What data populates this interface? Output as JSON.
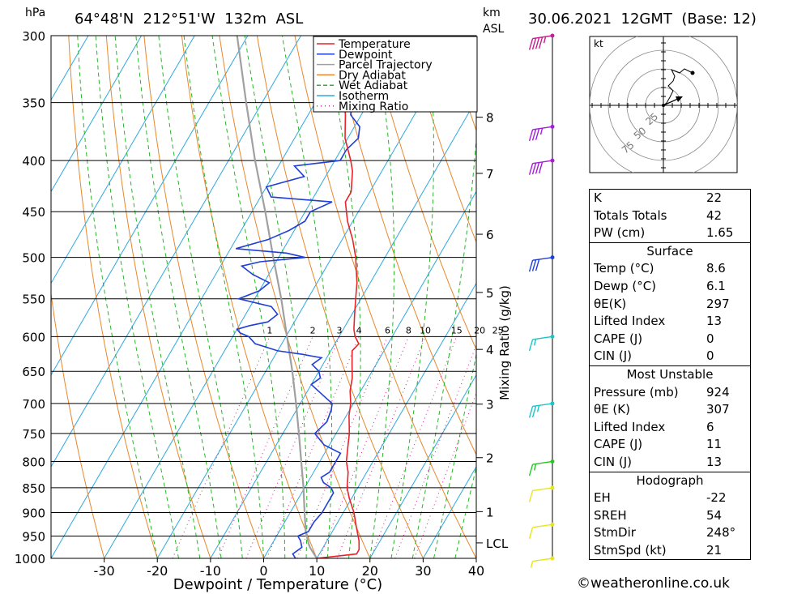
{
  "header": {
    "pressure_unit": "hPa",
    "location": "64°48'N  212°51'W  132m  ASL",
    "height_unit_1": "km",
    "height_unit_2": "ASL",
    "datetime": "30.06.2021  12GMT  (Base: 12)"
  },
  "chart_data": {
    "type": "line",
    "title": "",
    "xlabel": "Dewpoint / Temperature (°C)",
    "ylabel": "hPa",
    "xlim": [
      -40,
      40
    ],
    "ylim": [
      1000,
      300
    ],
    "y_scale": "log",
    "x_ticks": [
      "-30",
      "-20",
      "-10",
      "0",
      "10",
      "20",
      "30",
      "40"
    ],
    "y_ticks": [
      "300",
      "350",
      "400",
      "450",
      "500",
      "550",
      "600",
      "650",
      "700",
      "750",
      "800",
      "850",
      "900",
      "950",
      "1000"
    ],
    "km_labels": [
      {
        "km": "8",
        "p": 362
      },
      {
        "km": "7",
        "p": 412
      },
      {
        "km": "6",
        "p": 474
      },
      {
        "km": "5",
        "p": 542
      },
      {
        "km": "4",
        "p": 618
      },
      {
        "km": "3",
        "p": 701
      },
      {
        "km": "2",
        "p": 793
      },
      {
        "km": "1",
        "p": 898
      },
      {
        "km": "LCL",
        "p": 965
      }
    ],
    "mixing_ratio_axis_label": "Mixing Ratio (g/kg)",
    "mixing_ratio_labels": [
      "1",
      "2",
      "3",
      "4",
      "6",
      "8",
      "10",
      "15",
      "20",
      "25"
    ],
    "legend": {
      "position": "top-right",
      "entries": [
        {
          "name": "Temperature",
          "color": "#e8242b"
        },
        {
          "name": "Dewpoint",
          "color": "#1f3fd6"
        },
        {
          "name": "Parcel Trajectory",
          "color": "#a0a0a0"
        },
        {
          "name": "Dry Adiabat",
          "color": "#e8872a"
        },
        {
          "name": "Wet Adiabat",
          "color": "#27b627"
        },
        {
          "name": "Isotherm",
          "color": "#2ea8e0"
        },
        {
          "name": "Mixing Ratio",
          "color": "#d6208f"
        }
      ]
    },
    "series": [
      {
        "name": "Temperature",
        "points": [
          [
            1000,
            10
          ],
          [
            990,
            17
          ],
          [
            980,
            17
          ],
          [
            960,
            16
          ],
          [
            930,
            14
          ],
          [
            900,
            12
          ],
          [
            870,
            9.5
          ],
          [
            850,
            8
          ],
          [
            820,
            6.5
          ],
          [
            800,
            5
          ],
          [
            770,
            3.5
          ],
          [
            750,
            2.5
          ],
          [
            720,
            0.5
          ],
          [
            700,
            -0.5
          ],
          [
            680,
            -2
          ],
          [
            660,
            -3
          ],
          [
            640,
            -4.5
          ],
          [
            620,
            -6
          ],
          [
            610,
            -5.5
          ],
          [
            600,
            -7
          ],
          [
            590,
            -8
          ],
          [
            570,
            -9.5
          ],
          [
            550,
            -11
          ],
          [
            530,
            -12.5
          ],
          [
            510,
            -14.5
          ],
          [
            500,
            -15.5
          ],
          [
            480,
            -18
          ],
          [
            460,
            -21
          ],
          [
            440,
            -23.5
          ],
          [
            430,
            -23.5
          ],
          [
            410,
            -25.5
          ],
          [
            400,
            -27
          ],
          [
            380,
            -30.5
          ],
          [
            360,
            -33
          ],
          [
            340,
            -36
          ],
          [
            320,
            -38.5
          ],
          [
            300,
            -41
          ]
        ]
      },
      {
        "name": "Dewpoint",
        "points": [
          [
            1000,
            6
          ],
          [
            990,
            5
          ],
          [
            975,
            6
          ],
          [
            960,
            5
          ],
          [
            950,
            4
          ],
          [
            940,
            5.5
          ],
          [
            920,
            5.5
          ],
          [
            900,
            6
          ],
          [
            880,
            6
          ],
          [
            860,
            6
          ],
          [
            850,
            5
          ],
          [
            840,
            3
          ],
          [
            830,
            2
          ],
          [
            820,
            3
          ],
          [
            800,
            3
          ],
          [
            785,
            3
          ],
          [
            770,
            -1
          ],
          [
            750,
            -4
          ],
          [
            730,
            -3
          ],
          [
            710,
            -3.5
          ],
          [
            700,
            -4
          ],
          [
            690,
            -6
          ],
          [
            670,
            -10
          ],
          [
            660,
            -9
          ],
          [
            650,
            -10
          ],
          [
            640,
            -12
          ],
          [
            630,
            -11
          ],
          [
            625,
            -15
          ],
          [
            620,
            -20
          ],
          [
            610,
            -25
          ],
          [
            600,
            -27
          ],
          [
            595,
            -29
          ],
          [
            590,
            -30
          ],
          [
            585,
            -28
          ],
          [
            580,
            -25
          ],
          [
            570,
            -24
          ],
          [
            565,
            -25
          ],
          [
            560,
            -26
          ],
          [
            550,
            -33
          ],
          [
            540,
            -30
          ],
          [
            530,
            -29
          ],
          [
            520,
            -33
          ],
          [
            510,
            -36
          ],
          [
            505,
            -33
          ],
          [
            500,
            -25
          ],
          [
            495,
            -29
          ],
          [
            490,
            -39
          ],
          [
            480,
            -34
          ],
          [
            470,
            -31
          ],
          [
            460,
            -29
          ],
          [
            450,
            -29
          ],
          [
            440,
            -26
          ],
          [
            435,
            -38
          ],
          [
            425,
            -40
          ],
          [
            415,
            -34
          ],
          [
            405,
            -37
          ],
          [
            400,
            -29
          ],
          [
            390,
            -29
          ],
          [
            380,
            -28
          ],
          [
            370,
            -29
          ],
          [
            360,
            -32
          ],
          [
            350,
            -33
          ],
          [
            340,
            -34
          ],
          [
            330,
            -34
          ],
          [
            320,
            -32
          ],
          [
            310,
            -35
          ],
          [
            305,
            -39
          ],
          [
            300,
            -41
          ]
        ]
      },
      {
        "name": "Parcel Trajectory",
        "points": [
          [
            1000,
            10
          ],
          [
            975,
            7.5
          ],
          [
            966,
            6.8
          ],
          [
            940,
            5
          ],
          [
            900,
            2.7
          ],
          [
            850,
            -0.2
          ],
          [
            800,
            -3.5
          ],
          [
            750,
            -7
          ],
          [
            700,
            -10.8
          ],
          [
            650,
            -15
          ],
          [
            600,
            -19.8
          ],
          [
            550,
            -25
          ],
          [
            500,
            -31
          ],
          [
            450,
            -37.5
          ],
          [
            400,
            -45
          ],
          [
            350,
            -53
          ],
          [
            300,
            -62
          ]
        ]
      }
    ]
  },
  "wind_barbs": [
    {
      "p": 1000,
      "speed_kt": 5,
      "color": "#e6e61e"
    },
    {
      "p": 925,
      "speed_kt": 10,
      "color": "#e6e61e"
    },
    {
      "p": 850,
      "speed_kt": 10,
      "color": "#e6e61e"
    },
    {
      "p": 800,
      "speed_kt": 15,
      "color": "#27c627"
    },
    {
      "p": 700,
      "speed_kt": 25,
      "color": "#1fc4c4"
    },
    {
      "p": 600,
      "speed_kt": 15,
      "color": "#1fc4c4"
    },
    {
      "p": 500,
      "speed_kt": 30,
      "color": "#1f3fd6"
    },
    {
      "p": 400,
      "speed_kt": 40,
      "color": "#a21fd6"
    },
    {
      "p": 370,
      "speed_kt": 35,
      "color": "#a21fd6"
    },
    {
      "p": 300,
      "speed_kt": 45,
      "color": "#c41f8f"
    }
  ],
  "hodograph": {
    "unit_label": "kt",
    "ring_labels": [
      "25",
      "50",
      "75"
    ]
  },
  "indices": {
    "general": [
      {
        "label": "K",
        "value": "22"
      },
      {
        "label": "Totals Totals",
        "value": "42"
      },
      {
        "label": "PW (cm)",
        "value": "1.65"
      }
    ],
    "surface": {
      "title": "Surface",
      "rows": [
        {
          "label": "Temp (°C)",
          "value": "8.6"
        },
        {
          "label": "Dewp (°C)",
          "value": "6.1"
        },
        {
          "label": "θE(K)",
          "value": "297"
        },
        {
          "label": "Lifted Index",
          "value": "13"
        },
        {
          "label": "CAPE (J)",
          "value": "0"
        },
        {
          "label": "CIN (J)",
          "value": "0"
        }
      ]
    },
    "most_unstable": {
      "title": "Most Unstable",
      "rows": [
        {
          "label": "Pressure (mb)",
          "value": "924"
        },
        {
          "label": "θE (K)",
          "value": "307"
        },
        {
          "label": "Lifted Index",
          "value": "6"
        },
        {
          "label": "CAPE (J)",
          "value": "11"
        },
        {
          "label": "CIN (J)",
          "value": "13"
        }
      ]
    },
    "hodograph_box": {
      "title": "Hodograph",
      "rows": [
        {
          "label": "EH",
          "value": "-22"
        },
        {
          "label": "SREH",
          "value": "54"
        },
        {
          "label": "StmDir",
          "value": "248°"
        },
        {
          "label": "StmSpd (kt)",
          "value": "21"
        }
      ]
    }
  },
  "footer": "©weatheronline.co.uk"
}
